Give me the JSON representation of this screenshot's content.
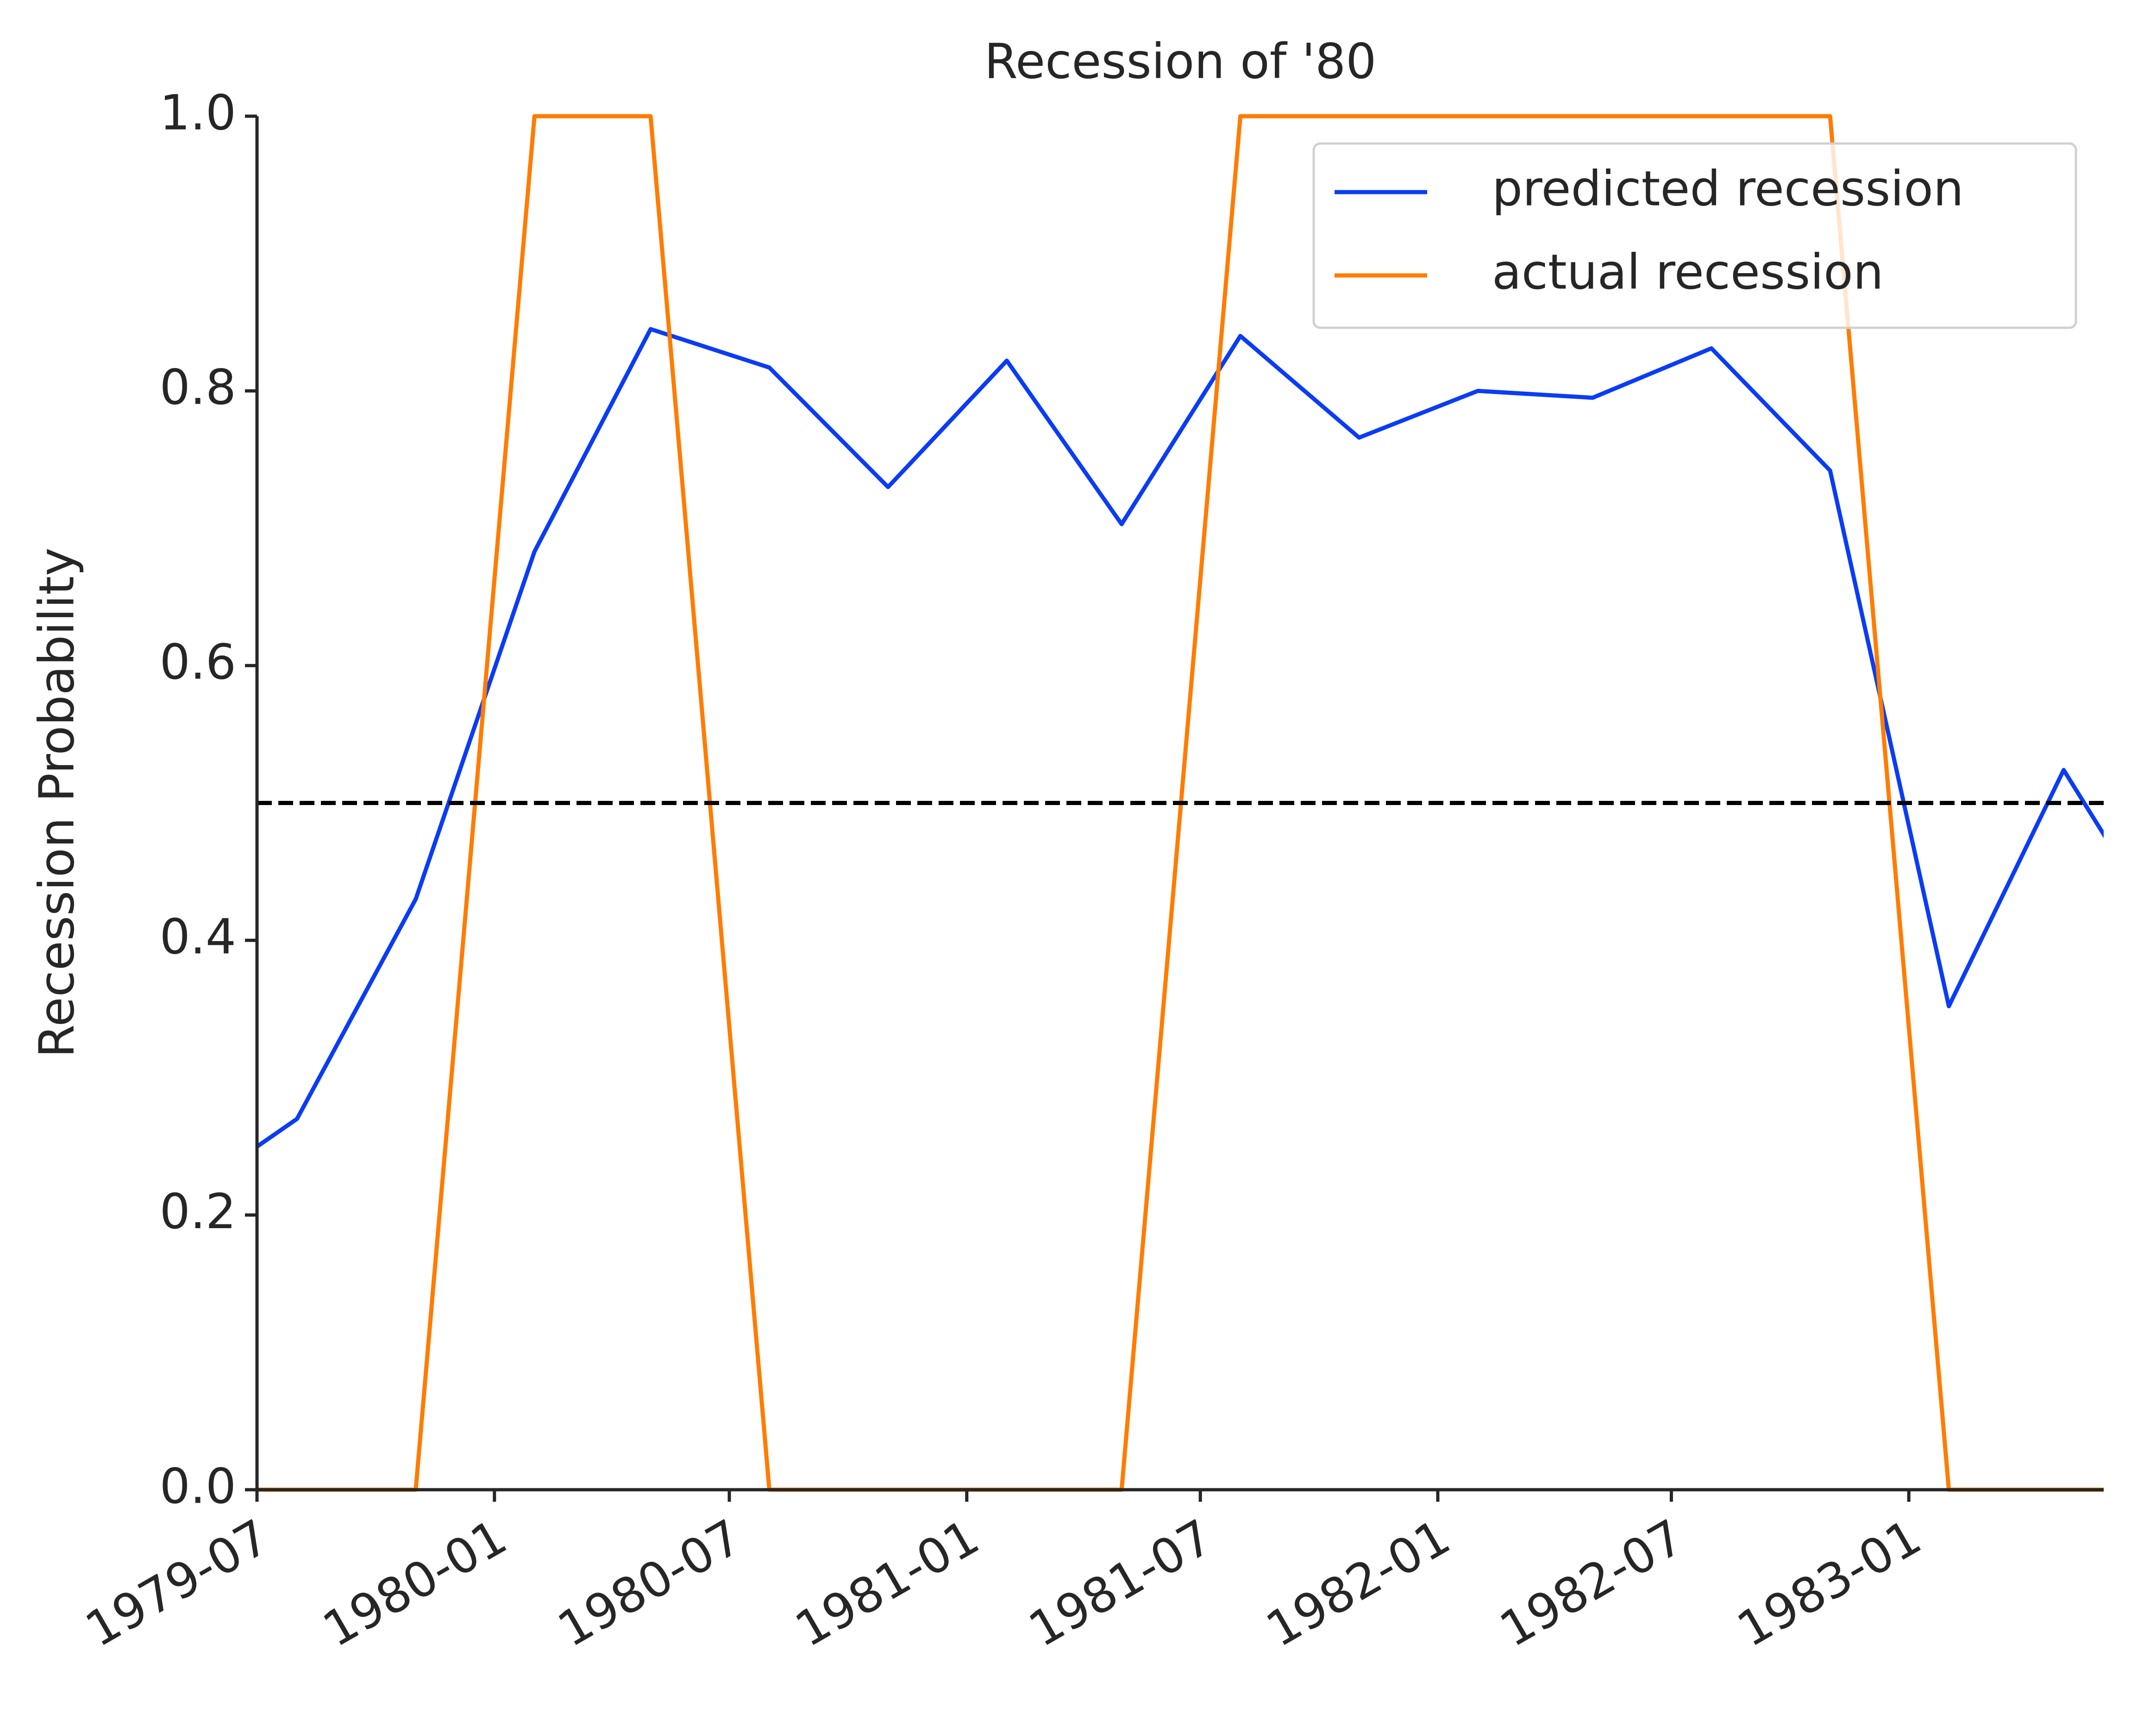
{
  "chart_data": {
    "type": "line",
    "title": "Recession of '80",
    "y_label": "Recession Probability",
    "x": [
      "1979-05",
      "1979-08",
      "1979-11",
      "1980-02",
      "1980-05",
      "1980-08",
      "1980-11",
      "1981-02",
      "1981-05",
      "1981-08",
      "1981-11",
      "1982-02",
      "1982-05",
      "1982-08",
      "1982-11",
      "1983-02",
      "1983-05",
      "1983-08"
    ],
    "series": [
      {
        "name": "predicted recession",
        "color": "#0b3cf5",
        "values": [
          0.21,
          0.27,
          0.43,
          0.683,
          0.845,
          0.817,
          0.73,
          0.822,
          0.703,
          0.84,
          0.766,
          0.8,
          0.795,
          0.831,
          0.742,
          0.352,
          0.524,
          0.385
        ]
      },
      {
        "name": "actual recession",
        "color": "#ff7c00",
        "values": [
          0,
          0,
          0,
          1,
          1,
          0,
          0,
          0,
          0,
          1,
          1,
          1,
          1,
          1,
          1,
          0,
          0,
          0
        ]
      }
    ],
    "hline": {
      "value": 0.5,
      "color": "#000000",
      "dashed": true
    },
    "xlim": [
      "1979-07",
      "1983-06"
    ],
    "xticks": [
      "1979-07",
      "1980-01",
      "1980-07",
      "1981-01",
      "1981-07",
      "1982-01",
      "1982-07",
      "1983-01"
    ],
    "ylim": [
      0,
      1
    ],
    "yticks": [
      {
        "value": 0,
        "label": "0.0"
      },
      {
        "value": 0.2,
        "label": "0.2"
      },
      {
        "value": 0.4,
        "label": "0.4"
      },
      {
        "value": 0.6,
        "label": "0.6"
      },
      {
        "value": 0.8,
        "label": "0.8"
      },
      {
        "value": 1,
        "label": "1.0"
      }
    ],
    "legend": "upper right",
    "grid": false
  }
}
